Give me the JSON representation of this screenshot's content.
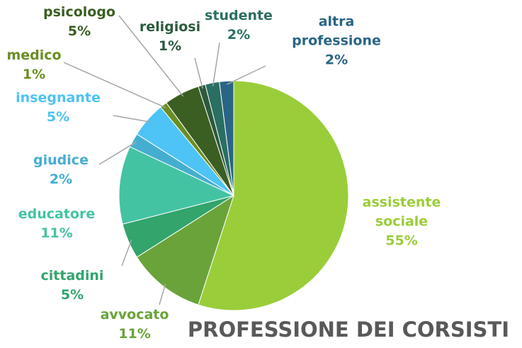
{
  "chart_data": {
    "type": "pie",
    "title": "PROFESSIONE DEI CORSISTI",
    "categories": [
      "assistente sociale",
      "avvocato",
      "cittadini",
      "educatore",
      "giudice",
      "insegnante",
      "medico",
      "psicologo",
      "religiosi",
      "studente",
      "altra professione"
    ],
    "values": [
      55,
      11,
      5,
      11,
      2,
      5,
      1,
      5,
      1,
      2,
      2
    ],
    "value_labels": [
      "55%",
      "11%",
      "5%",
      "11%",
      "2%",
      "5%",
      "1%",
      "5%",
      "1%",
      "2%",
      "2%"
    ],
    "colors": [
      "#9acd3a",
      "#6aa33a",
      "#32a46c",
      "#44c3a3",
      "#45aed0",
      "#4ec3f5",
      "#6b8e23",
      "#3b5e22",
      "#2b5a3c",
      "#2a6f62",
      "#2a6585"
    ]
  }
}
